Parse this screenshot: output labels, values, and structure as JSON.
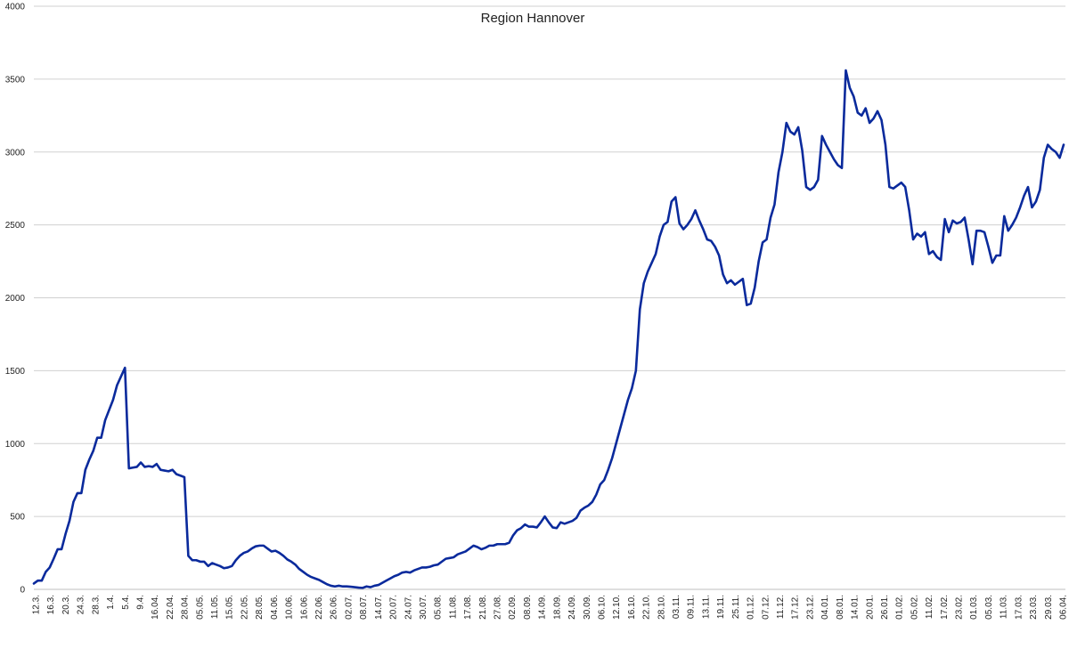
{
  "chart_data": {
    "type": "line",
    "title": "Region Hannover",
    "xlabel": "",
    "ylabel": "",
    "ylim": [
      0,
      4000
    ],
    "y_ticks": [
      "0",
      "500",
      "1000",
      "1500",
      "2000",
      "2500",
      "3000",
      "3500",
      "4000"
    ],
    "grid": "horizontal",
    "legend": "none",
    "line_color": "#0a2a9c",
    "x_tick_labels": [
      "12.3.",
      "16.3.",
      "20.3.",
      "24.3.",
      "28.3.",
      "1.4.",
      "5.4.",
      "9.4.",
      "16.04.",
      "22.04.",
      "28.04.",
      "05.05.",
      "11.05.",
      "15.05.",
      "22.05.",
      "28.05.",
      "04.06.",
      "10.06.",
      "16.06.",
      "22.06.",
      "26.06.",
      "02.07.",
      "08.07.",
      "14.07.",
      "20.07.",
      "24.07.",
      "30.07.",
      "05.08.",
      "11.08.",
      "17.08.",
      "21.08.",
      "27.08.",
      "02.09.",
      "08.09.",
      "14.09.",
      "18.09.",
      "24.09.",
      "30.09.",
      "06.10.",
      "12.10.",
      "16.10.",
      "22.10.",
      "28.10.",
      "03.11.",
      "09.11.",
      "13.11.",
      "19.11.",
      "25.11.",
      "01.12.",
      "07.12.",
      "11.12.",
      "17.12.",
      "23.12.",
      "04.01.",
      "08.01.",
      "14.01.",
      "20.01.",
      "26.01.",
      "01.02.",
      "05.02.",
      "11.02.",
      "17.02.",
      "23.02.",
      "01.03.",
      "05.03.",
      "11.03.",
      "17.03.",
      "23.03.",
      "29.03.",
      "06.04."
    ],
    "series": [
      {
        "values": [
          40,
          60,
          60,
          120,
          150,
          210,
          275,
          275,
          380,
          470,
          600,
          660,
          660,
          820,
          890,
          950,
          1040,
          1040,
          1160,
          1230,
          1300,
          1400,
          1460,
          1520,
          830,
          835,
          840,
          870,
          840,
          845,
          840,
          860,
          820,
          815,
          810,
          820,
          790,
          780,
          770,
          230,
          200,
          200,
          190,
          190,
          160,
          180,
          170,
          160,
          145,
          150,
          160,
          200,
          230,
          250,
          260,
          280,
          295,
          300,
          300,
          280,
          260,
          265,
          250,
          230,
          205,
          190,
          170,
          140,
          120,
          100,
          85,
          75,
          65,
          50,
          35,
          25,
          20,
          25,
          20,
          20,
          18,
          15,
          12,
          10,
          20,
          15,
          25,
          30,
          45,
          60,
          75,
          90,
          100,
          115,
          120,
          115,
          130,
          140,
          150,
          150,
          155,
          165,
          170,
          190,
          210,
          215,
          220,
          240,
          250,
          260,
          280,
          300,
          290,
          275,
          285,
          300,
          300,
          310,
          310,
          310,
          320,
          370,
          405,
          420,
          445,
          430,
          430,
          425,
          460,
          500,
          460,
          425,
          420,
          460,
          450,
          460,
          470,
          490,
          540,
          560,
          575,
          600,
          650,
          720,
          750,
          820,
          900,
          1000,
          1100,
          1200,
          1300,
          1380,
          1500,
          1920,
          2100,
          2180,
          2240,
          2300,
          2420,
          2500,
          2520,
          2660,
          2690,
          2510,
          2470,
          2500,
          2540,
          2600,
          2530,
          2470,
          2400,
          2390,
          2350,
          2290,
          2160,
          2100,
          2120,
          2090,
          2110,
          2130,
          1950,
          1960,
          2070,
          2250,
          2380,
          2400,
          2550,
          2640,
          2860,
          3000,
          3200,
          3140,
          3120,
          3170,
          3010,
          2760,
          2740,
          2760,
          2810,
          3110,
          3050,
          3000,
          2950,
          2910,
          2890,
          3560,
          3440,
          3380,
          3270,
          3250,
          3300,
          3200,
          3230,
          3280,
          3220,
          3050,
          2760,
          2750,
          2770,
          2790,
          2760,
          2600,
          2400,
          2440,
          2420,
          2450,
          2300,
          2320,
          2280,
          2260,
          2540,
          2450,
          2530,
          2510,
          2520,
          2550,
          2400,
          2230,
          2460,
          2460,
          2450,
          2350,
          2240,
          2290,
          2290,
          2560,
          2460,
          2500,
          2550,
          2620,
          2700,
          2760,
          2620,
          2660,
          2740,
          2960,
          3050,
          3020,
          3000,
          2960,
          3050
        ]
      }
    ]
  }
}
